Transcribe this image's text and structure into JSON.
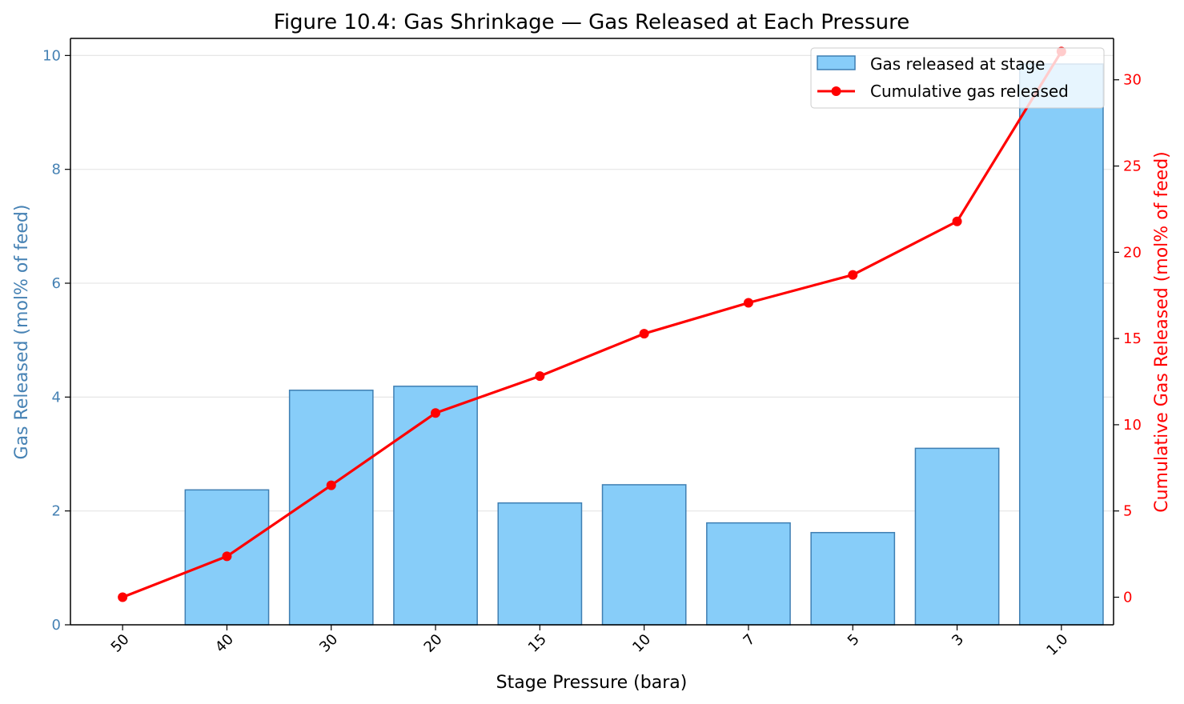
{
  "chart_data": {
    "type": "bar",
    "title": "Figure 10.4: Gas Shrinkage — Gas Released at Each Pressure",
    "xlabel": "Stage Pressure (bara)",
    "ylabel": "Gas Released (mol% of feed)",
    "y2label": "Cumulative Gas Released (mol% of feed)",
    "categories": [
      "50",
      "40",
      "30",
      "20",
      "15",
      "10",
      "7",
      "5",
      "3",
      "1.0"
    ],
    "ylim": [
      0,
      10.3
    ],
    "y2lim": [
      -1.6,
      32.4
    ],
    "yticks": [
      0,
      2,
      4,
      6,
      8,
      10
    ],
    "y2ticks": [
      0,
      5,
      10,
      15,
      20,
      25,
      30
    ],
    "grid": "y-major",
    "legend_position": "top-right",
    "series": [
      {
        "name": "Gas released at stage",
        "type": "bar",
        "axis": "left",
        "values": [
          0,
          2.37,
          4.12,
          4.19,
          2.14,
          2.46,
          1.79,
          1.62,
          3.1,
          9.85
        ]
      },
      {
        "name": "Cumulative gas released",
        "type": "line",
        "axis": "right",
        "values": [
          0,
          2.37,
          6.49,
          10.68,
          12.82,
          15.28,
          17.07,
          18.69,
          21.79,
          31.64
        ]
      }
    ],
    "colors": {
      "bar_fill": "#87cdf9",
      "bar_edge": "#3f7fb3",
      "line": "#ff0000",
      "left_axis": "#4682b4",
      "right_axis": "#ff0000",
      "grid": "#e6e6e6"
    }
  }
}
